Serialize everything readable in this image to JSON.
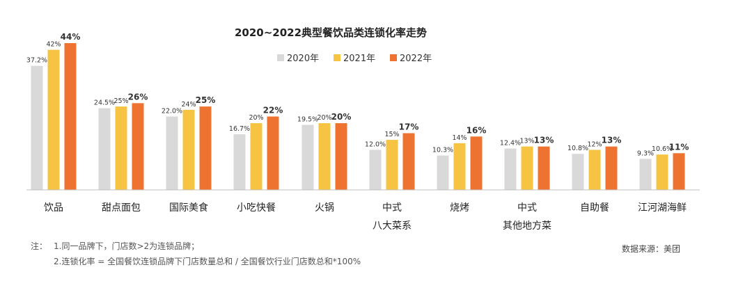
{
  "chart_data": {
    "type": "bar",
    "title": "2020~2022典型餐饮品类连锁化率走势",
    "categories": [
      [
        "饮品"
      ],
      [
        "甜点面包"
      ],
      [
        "国际美食"
      ],
      [
        "小吃快餐"
      ],
      [
        "火锅"
      ],
      [
        "中式",
        "八大菜系"
      ],
      [
        "烧烤"
      ],
      [
        "中式",
        "其他地方菜"
      ],
      [
        "自助餐"
      ],
      [
        "江河湖海鲜"
      ]
    ],
    "series": [
      {
        "name": "2020年",
        "color": "#d9d9d9",
        "values": [
          37.2,
          24.5,
          22.0,
          16.7,
          19.5,
          12.0,
          10.3,
          12.4,
          10.8,
          9.3
        ],
        "labels": [
          "37.2%",
          "24.5%",
          "22.0%",
          "16.7%",
          "19.5%",
          "12.0%",
          "10.3%",
          "12.4%",
          "10.8%",
          "9.3%"
        ]
      },
      {
        "name": "2021年",
        "color": "#f6c342",
        "values": [
          42,
          25,
          24,
          20,
          20,
          15,
          14,
          13,
          12,
          10.6
        ],
        "labels": [
          "42%",
          "25%",
          "24%",
          "20%",
          "20%",
          "15%",
          "14%",
          "13%",
          "12%",
          "10.6%"
        ]
      },
      {
        "name": "2022年",
        "color": "#ef7330",
        "values": [
          44,
          26,
          25,
          22,
          20,
          17,
          16,
          13,
          13,
          11
        ],
        "labels": [
          "44%",
          "26%",
          "25%",
          "22%",
          "20%",
          "17%",
          "16%",
          "13%",
          "13%",
          "11%"
        ]
      }
    ],
    "ylim": [
      0,
      44
    ],
    "grid": false,
    "legend": "top-center"
  },
  "notes": {
    "prefix": "注：",
    "line1": "1.同一品牌下，门店数>2为连锁品牌；",
    "line2": "2.连锁化率 = 全国餐饮连锁品牌下门店数量总和 / 全国餐饮行业门店数总和*100%"
  },
  "source": "数据来源：美团"
}
